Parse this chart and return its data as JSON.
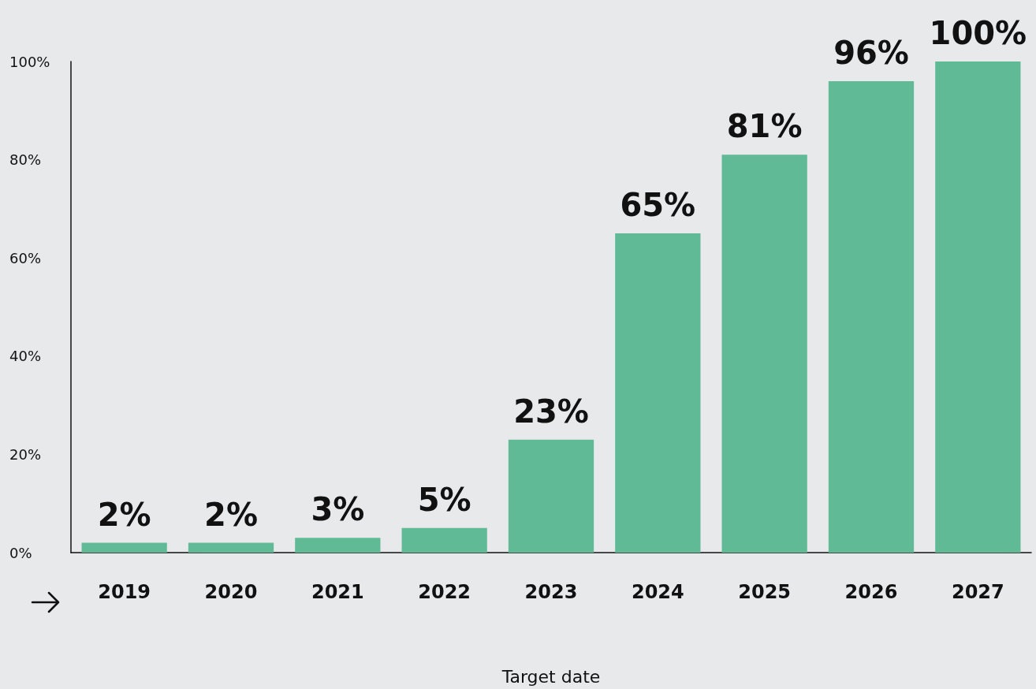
{
  "chart_data": {
    "type": "bar",
    "xlabel": "Target date",
    "categories": [
      "2019",
      "2020",
      "2021",
      "2022",
      "2023",
      "2024",
      "2025",
      "2026",
      "2027"
    ],
    "values": [
      2,
      2,
      3,
      5,
      23,
      65,
      81,
      96,
      100
    ],
    "value_labels": [
      "2%",
      "2%",
      "3%",
      "5%",
      "23%",
      "65%",
      "81%",
      "96%",
      "100%"
    ],
    "color": "#5fba95",
    "ylim": [
      0,
      100
    ],
    "yticks": [
      {
        "value": 0,
        "label": "0%"
      },
      {
        "value": 20,
        "label": "20%"
      },
      {
        "value": 40,
        "label": "40%"
      },
      {
        "value": 60,
        "label": "60%"
      },
      {
        "value": 80,
        "label": "80%"
      },
      {
        "value": 100,
        "label": "100%"
      }
    ],
    "grid": false
  }
}
